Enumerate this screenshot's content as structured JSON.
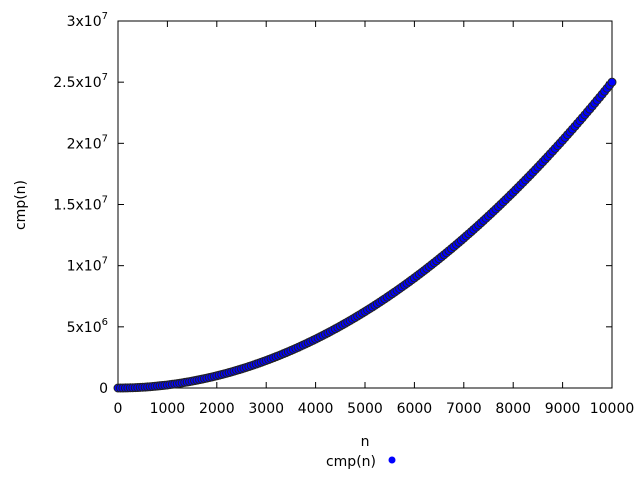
{
  "chart_data": {
    "type": "scatter",
    "xlabel": "n",
    "ylabel": "cmp(n)",
    "xlim": [
      0,
      10000
    ],
    "ylim": [
      0,
      30000000
    ],
    "x_ticks": [
      0,
      1000,
      2000,
      3000,
      4000,
      5000,
      6000,
      7000,
      8000,
      9000,
      10000
    ],
    "x_tick_labels": [
      "0",
      "1000",
      "2000",
      "3000",
      "4000",
      "5000",
      "6000",
      "7000",
      "8000",
      "9000",
      "10000"
    ],
    "y_ticks": [
      {
        "value": 0,
        "mantissa": "0",
        "exp": ""
      },
      {
        "value": 5000000,
        "mantissa": "5x10",
        "exp": "6"
      },
      {
        "value": 10000000,
        "mantissa": "1x10",
        "exp": "7"
      },
      {
        "value": 15000000,
        "mantissa": "1.5x10",
        "exp": "7"
      },
      {
        "value": 20000000,
        "mantissa": "2x10",
        "exp": "7"
      },
      {
        "value": 25000000,
        "mantissa": "2.5x10",
        "exp": "7"
      },
      {
        "value": 30000000,
        "mantissa": "3x10",
        "exp": "7"
      }
    ],
    "grid": false,
    "legend_position": "bottom-center",
    "series": [
      {
        "name": "cmp(n)",
        "color": "#0000ff",
        "edge_color": "#222222",
        "x_start": 0,
        "x_step": 50,
        "x_end": 10000,
        "model": "quadratic",
        "coefficient": 0.25,
        "exponent": 2
      }
    ]
  }
}
